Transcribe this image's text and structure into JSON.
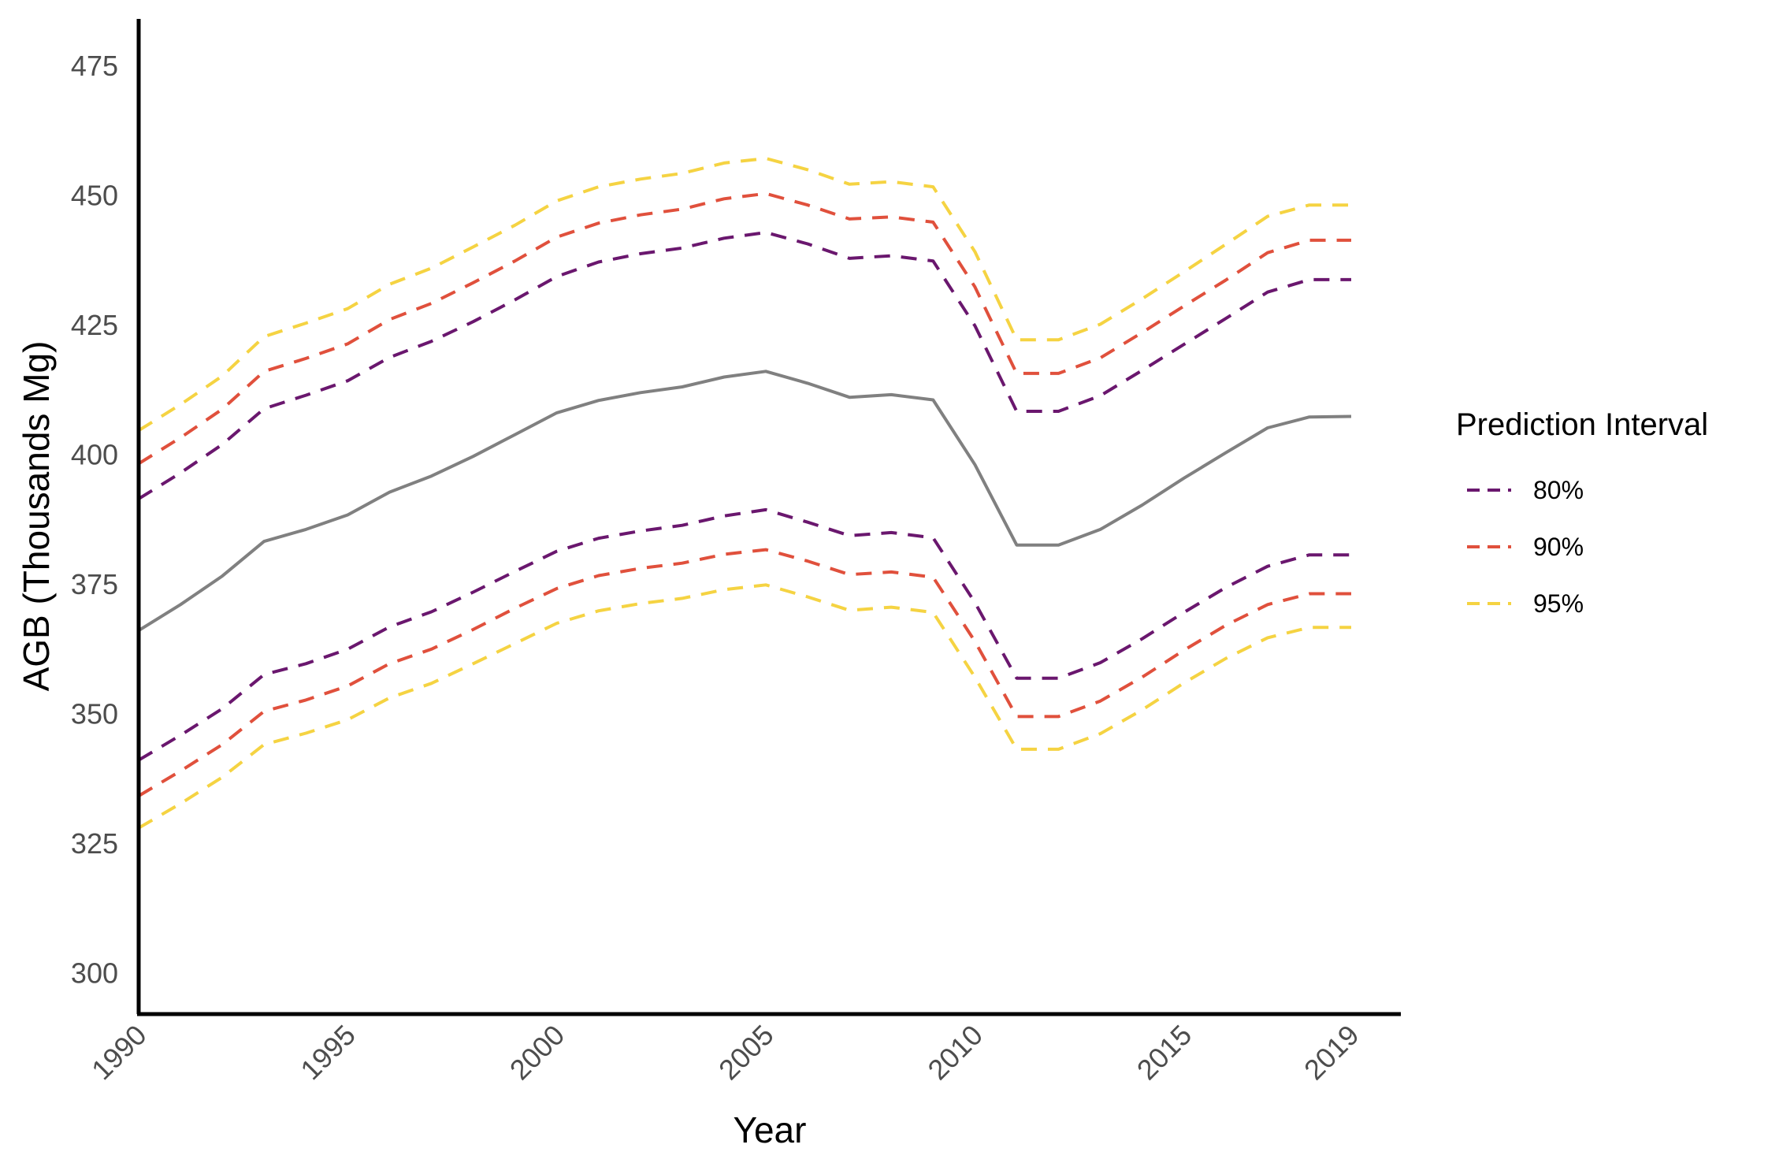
{
  "chart_data": {
    "type": "line",
    "title": "",
    "xlabel": "Year",
    "ylabel": "AGB (Thousands Mg)",
    "xlim": [
      1990,
      2019
    ],
    "ylim": [
      292,
      484
    ],
    "x_ticks": [
      "1990",
      "1995",
      "2000",
      "2005",
      "2010",
      "2015",
      "2019"
    ],
    "y_ticks": [
      "300",
      "325",
      "350",
      "375",
      "400",
      "425",
      "450",
      "475"
    ],
    "grid": false,
    "legend": {
      "title": "Prediction Interval",
      "placement": "right",
      "entries": [
        {
          "label": "80%",
          "color": "#6a176e"
        },
        {
          "label": "90%",
          "color": "#e0503c"
        },
        {
          "label": "95%",
          "color": "#f5d342"
        }
      ]
    },
    "x": [
      1990,
      1991,
      1992,
      1993,
      1994,
      1995,
      1996,
      1997,
      1998,
      1999,
      2000,
      2001,
      2002,
      2003,
      2004,
      2005,
      2006,
      2007,
      2008,
      2009,
      2010,
      2011,
      2012,
      2013,
      2014,
      2015,
      2016,
      2017,
      2018,
      2019
    ],
    "estimate": {
      "color": "#808080",
      "values": [
        366,
        371,
        376.5,
        383.2,
        385.5,
        388.3,
        392.7,
        395.8,
        399.6,
        403.8,
        408,
        410.4,
        411.9,
        413,
        414.9,
        416,
        413.7,
        411,
        411.5,
        410.5,
        398,
        382.5,
        382.5,
        385.5,
        390.2,
        395.4,
        400.3,
        405.1,
        407.2,
        407.3
      ]
    },
    "series": [
      {
        "name": "80%",
        "color": "#6a176e",
        "upper": [
          391.4,
          396.4,
          401.9,
          408.8,
          411.4,
          414.2,
          418.7,
          421.8,
          425.6,
          429.8,
          434.3,
          437.1,
          438.7,
          439.8,
          441.7,
          442.8,
          440.6,
          437.8,
          438.3,
          437.3,
          424.8,
          408.3,
          408.3,
          411.3,
          416.2,
          421.2,
          426.2,
          431.3,
          433.7,
          433.7
        ],
        "lower": [
          341,
          345.8,
          350.9,
          357.5,
          359.6,
          362.4,
          366.7,
          369.6,
          373.4,
          377.4,
          381.3,
          383.8,
          385.2,
          386.3,
          388.1,
          389.3,
          386.9,
          384.3,
          384.9,
          383.9,
          371.4,
          356.8,
          356.8,
          359.8,
          364.4,
          369.5,
          374.3,
          378.4,
          380.6,
          380.6
        ]
      },
      {
        "name": "90%",
        "color": "#e0503c",
        "upper": [
          398.2,
          403.2,
          408.7,
          416,
          418.5,
          421.3,
          426,
          429.1,
          433.1,
          437.3,
          441.9,
          444.6,
          446.2,
          447.3,
          449.3,
          450.3,
          448.1,
          445.4,
          445.8,
          444.8,
          432.3,
          415.6,
          415.6,
          418.6,
          423.5,
          428.6,
          433.6,
          438.9,
          441.3,
          441.3
        ],
        "lower": [
          334.1,
          338.9,
          344,
          350.4,
          352.6,
          355.3,
          359.6,
          362.4,
          366.2,
          370.3,
          374.1,
          376.6,
          378,
          379,
          380.7,
          381.6,
          379.4,
          376.8,
          377.3,
          376.3,
          363.9,
          349.4,
          349.4,
          352.4,
          357,
          362.2,
          367,
          371,
          373.1,
          373.1
        ]
      },
      {
        "name": "95%",
        "color": "#f5d342",
        "upper": [
          404.6,
          409.6,
          415.1,
          422.7,
          425.3,
          428.1,
          432.8,
          435.9,
          440,
          444.2,
          448.9,
          451.6,
          453.1,
          454.2,
          456.2,
          457.1,
          454.9,
          452.1,
          452.6,
          451.6,
          439.1,
          422.1,
          422.1,
          425.1,
          430,
          435.2,
          440.5,
          445.9,
          448.1,
          448.1
        ],
        "lower": [
          327.9,
          332.6,
          337.7,
          344,
          346.2,
          348.8,
          353,
          355.8,
          359.6,
          363.5,
          367.4,
          369.8,
          371.2,
          372.2,
          373.9,
          374.8,
          372.5,
          369.9,
          370.5,
          369.5,
          357,
          343.1,
          343.1,
          346.1,
          350.7,
          355.9,
          360.6,
          364.6,
          366.6,
          366.6
        ]
      }
    ]
  }
}
